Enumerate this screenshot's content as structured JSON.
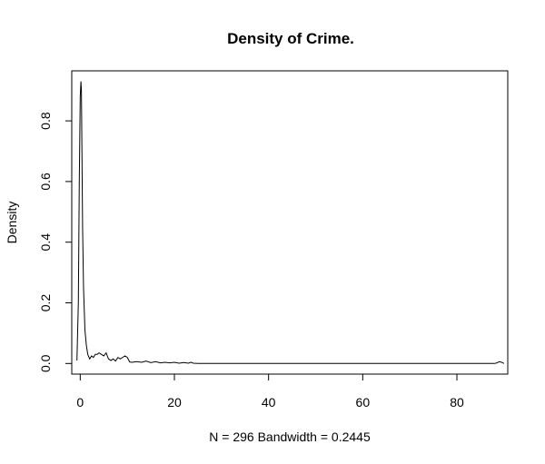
{
  "chart_data": {
    "type": "line",
    "title": "Density of Crime.",
    "xlabel": "N = 296   Bandwidth = 0.2445",
    "ylabel": "Density",
    "xlim": [
      -1.8,
      90.8
    ],
    "ylim": [
      -0.035,
      0.965
    ],
    "x_ticks": [
      0,
      20,
      40,
      60,
      80
    ],
    "x_tick_labels": [
      "0",
      "20",
      "40",
      "60",
      "80"
    ],
    "y_ticks": [
      0.0,
      0.2,
      0.4,
      0.6,
      0.8
    ],
    "y_tick_labels": [
      "0.0",
      "0.2",
      "0.4",
      "0.6",
      "0.8"
    ],
    "grid": false,
    "legend": "none",
    "line_color": "#000000",
    "series": [
      {
        "x": [
          -0.7,
          -0.4,
          -0.2,
          0.0,
          0.15,
          0.25,
          0.35,
          0.5,
          0.7,
          1.0,
          1.3,
          1.6,
          2.0,
          2.4,
          2.8,
          3.2,
          3.6,
          4.0,
          4.5,
          5.0,
          5.5,
          6.0,
          6.5,
          7.0,
          7.5,
          8.0,
          8.5,
          9.0,
          9.5,
          10.0,
          10.5,
          11.0,
          12.0,
          13.0,
          14.0,
          15.0,
          16.0,
          17.0,
          18.0,
          19.0,
          20.0,
          21.0,
          22.0,
          23.0,
          23.5,
          24.0,
          25.0,
          30.0,
          40.0,
          50.0,
          60.0,
          70.0,
          80.0,
          88.0,
          88.5,
          89.0,
          89.5,
          90.0
        ],
        "y": [
          0.01,
          0.2,
          0.6,
          0.88,
          0.93,
          0.9,
          0.72,
          0.45,
          0.25,
          0.11,
          0.06,
          0.03,
          0.015,
          0.025,
          0.02,
          0.03,
          0.03,
          0.035,
          0.03,
          0.025,
          0.035,
          0.015,
          0.01,
          0.015,
          0.008,
          0.02,
          0.015,
          0.02,
          0.025,
          0.02,
          0.005,
          0.004,
          0.006,
          0.004,
          0.008,
          0.003,
          0.006,
          0.002,
          0.004,
          0.002,
          0.004,
          0.001,
          0.003,
          0.001,
          0.004,
          0.001,
          0.0,
          0.0,
          0.0,
          0.0,
          0.0,
          0.0,
          0.0,
          0.0,
          0.002,
          0.006,
          0.004,
          0.0
        ]
      }
    ]
  }
}
